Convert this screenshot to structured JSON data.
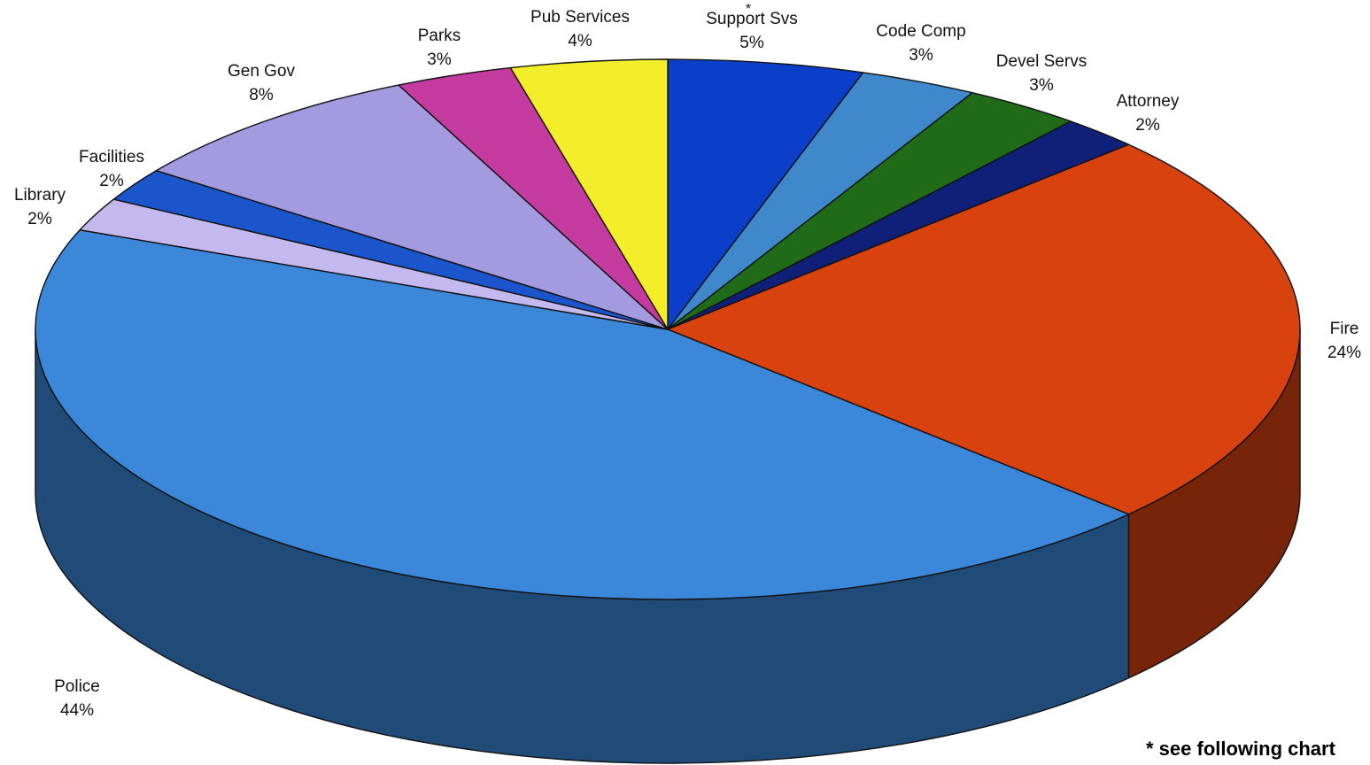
{
  "chart_data": {
    "type": "pie",
    "title": "",
    "slices": [
      {
        "label": "Support Svs",
        "value_label": "5%",
        "value": 5,
        "color": "#0b3ec9",
        "footnote_mark": "*"
      },
      {
        "label": "Code Comp",
        "value_label": "3%",
        "value": 3,
        "color": "#3f88cc"
      },
      {
        "label": "Devel Servs",
        "value_label": "3%",
        "value": 3,
        "color": "#1f6b17"
      },
      {
        "label": "Attorney",
        "value_label": "2%",
        "value": 2,
        "color": "#101f78"
      },
      {
        "label": "Fire",
        "value_label": "24%",
        "value": 24,
        "color": "#d8420f"
      },
      {
        "label": "Police",
        "value_label": "44%",
        "value": 44,
        "color": "#3b88da"
      },
      {
        "label": "Library",
        "value_label": "2%",
        "value": 2,
        "color": "#c3b9ee"
      },
      {
        "label": "Facilities",
        "value_label": "2%",
        "value": 2,
        "color": "#1a55cc"
      },
      {
        "label": "Gen Gov",
        "value_label": "8%",
        "value": 8,
        "color": "#a39ae0"
      },
      {
        "label": "Parks",
        "value_label": "3%",
        "value": 3,
        "color": "#c43a9e"
      },
      {
        "label": "Pub Services",
        "value_label": "4%",
        "value": 4,
        "color": "#f3ee2a"
      }
    ],
    "footnote": "* see following chart"
  }
}
